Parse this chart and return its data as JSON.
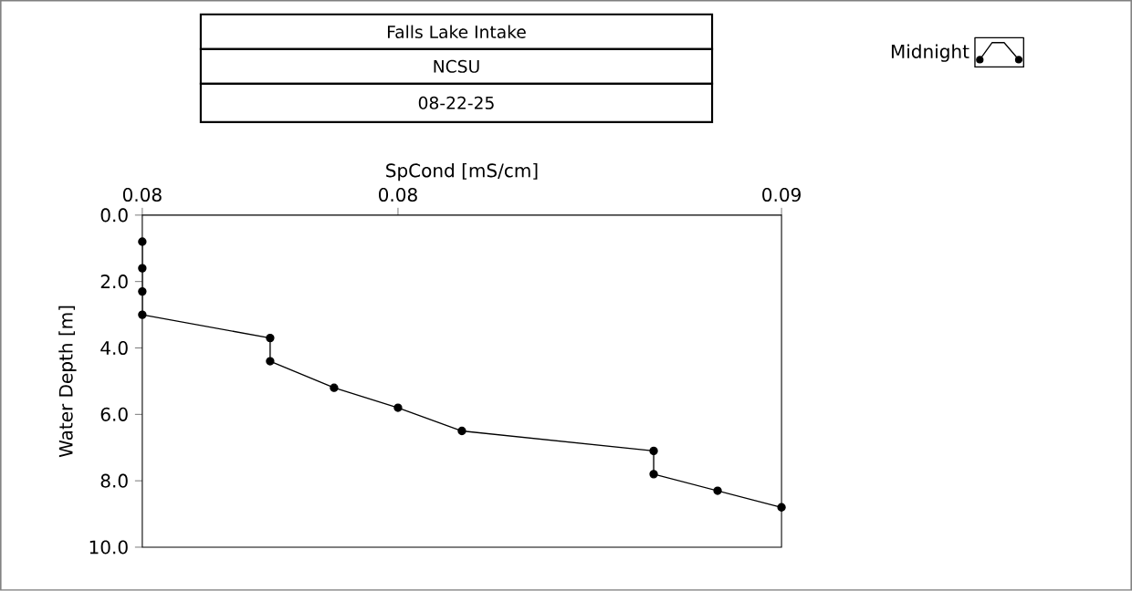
{
  "chart_data": {
    "type": "line",
    "title": "Falls Lake Intake",
    "subtitle": "NCSU",
    "annotations": [
      "08-22-25"
    ],
    "xlabel": "SpCond [mS/cm]",
    "ylabel": "Water Depth [m]",
    "series": [
      {
        "name": "Midnight",
        "color": "#000000",
        "x": [
          0.08,
          0.08,
          0.08,
          0.08,
          0.082,
          0.082,
          0.083,
          0.084,
          0.085,
          0.088,
          0.088,
          0.089,
          0.09
        ],
        "values": [
          0.8,
          1.6,
          2.3,
          3.0,
          3.7,
          4.4,
          5.2,
          5.8,
          6.5,
          7.1,
          7.8,
          8.3,
          8.8
        ]
      }
    ],
    "xlim": [
      0.08,
      0.09
    ],
    "xticks": [
      {
        "value": 0.08,
        "label": "0.08"
      },
      {
        "value": 0.084,
        "label": "0.08"
      },
      {
        "value": 0.09,
        "label": "0.09"
      }
    ],
    "ylim": [
      10,
      0
    ],
    "yticks": [
      {
        "value": 0,
        "label": "0.0"
      },
      {
        "value": 2,
        "label": "2.0"
      },
      {
        "value": 4,
        "label": "4.0"
      },
      {
        "value": 6,
        "label": "6.0"
      },
      {
        "value": 8,
        "label": "8.0"
      },
      {
        "value": 10,
        "label": "10.0"
      }
    ],
    "marker": "circle",
    "line_style": "solid",
    "legend": "top right",
    "grid": false
  }
}
